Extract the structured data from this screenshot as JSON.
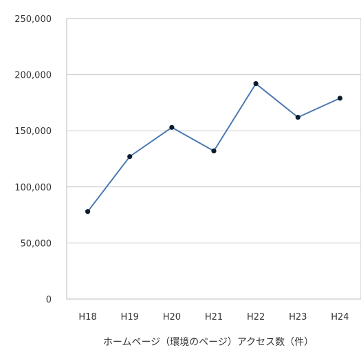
{
  "chart_data": {
    "type": "line",
    "title": "",
    "xlabel": "ホームページ（環境のページ）アクセス数（件）",
    "ylabel": "",
    "categories": [
      "H18",
      "H19",
      "H20",
      "H21",
      "H22",
      "H23",
      "H24"
    ],
    "series": [
      {
        "values": [
          78000,
          127000,
          153000,
          132000,
          192000,
          162000,
          179000
        ]
      }
    ],
    "ylim": [
      0,
      250000
    ],
    "yticks": [
      0,
      50000,
      100000,
      150000,
      200000,
      250000
    ],
    "ytick_labels": [
      "0",
      "50,000",
      "100,000",
      "150,000",
      "200,000",
      "250,000"
    ],
    "grid": true,
    "legend": "none",
    "colors": {
      "line": "#4a78b0",
      "marker": "#0d1b2e",
      "grid": "#cccccc",
      "frame": "#bdbdbd"
    }
  }
}
